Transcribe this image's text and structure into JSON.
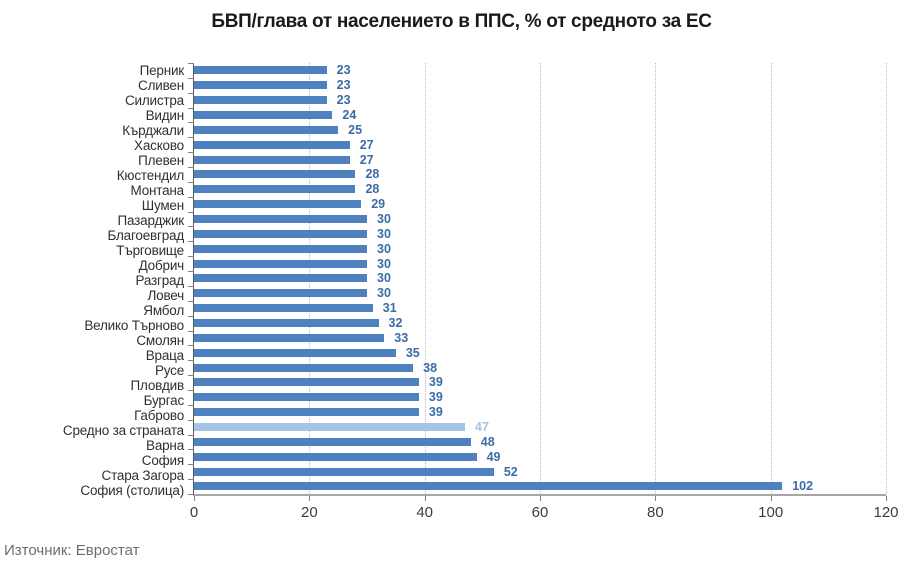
{
  "title": "БВП/глава от населението в ППС, % от средното за ЕС",
  "source": "Източник: Евростат",
  "chart_data": {
    "type": "bar",
    "orientation": "horizontal",
    "title": "БВП/глава от населението в ППС, % от средното за ЕС",
    "categories": [
      "Перник",
      "Сливен",
      "Силистра",
      "Видин",
      "Кърджали",
      "Хасково",
      "Плевен",
      "Кюстендил",
      "Монтана",
      "Шумен",
      "Пазарджик",
      "Благоевград",
      "Търговище",
      "Добрич",
      "Разград",
      "Ловеч",
      "Ямбол",
      "Велико Търново",
      "Смолян",
      "Враца",
      "Русе",
      "Пловдив",
      "Бургас",
      "Габрово",
      "Средно за страната",
      "Варна",
      "София",
      "Стара Загора",
      "София (столица)"
    ],
    "values": [
      23,
      23,
      23,
      24,
      25,
      27,
      27,
      28,
      28,
      29,
      30,
      30,
      30,
      30,
      30,
      30,
      31,
      32,
      33,
      35,
      38,
      39,
      39,
      39,
      47,
      48,
      49,
      52,
      102
    ],
    "highlight_category": "Средно за страната",
    "highlight_index": 24,
    "xlim": [
      0,
      120
    ],
    "x_ticks": [
      0,
      20,
      40,
      60,
      80,
      100,
      120
    ],
    "grid": "vertical-dotted",
    "legend": "none",
    "bar_color": "#4e81bd",
    "highlight_bar_color": "#a6c4e6",
    "value_label_color": "#3b6ca5",
    "highlight_value_label_color": "#a6c4e6",
    "source_note": "Източник: Евростат"
  }
}
